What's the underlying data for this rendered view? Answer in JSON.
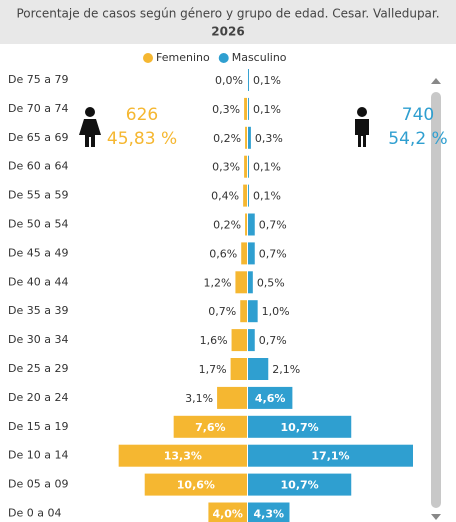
{
  "chart_data": {
    "type": "pyramid",
    "title": "Porcentaje de casos según género y grupo de edad. Cesar. Valledupar.",
    "subtitle": "2026",
    "categories": [
      "De 75 a 79",
      "De 70 a 74",
      "De 65 a 69",
      "De 60 a 64",
      "De 55 a 59",
      "De 50 a 54",
      "De 45 a 49",
      "De 40 a 44",
      "De 35 a 39",
      "De 30 a 34",
      "De 25 a 29",
      "De 20 a 24",
      "De 15 a 19",
      "De 10 a 14",
      "De 05 a 09",
      "De 0 a 04"
    ],
    "series": [
      {
        "name": "Femenino",
        "color": "#f5b731",
        "values": [
          0.0,
          0.3,
          0.2,
          0.3,
          0.4,
          0.2,
          0.6,
          1.2,
          0.7,
          1.6,
          1.7,
          3.1,
          7.6,
          13.3,
          10.6,
          4.0
        ],
        "value_labels": [
          "0,0%",
          "0,3%",
          "0,2%",
          "0,3%",
          "0,4%",
          "0,2%",
          "0,6%",
          "1,2%",
          "0,7%",
          "1,6%",
          "1,7%",
          "3,1%",
          "7,6%",
          "13,3%",
          "10,6%",
          "4,0%"
        ]
      },
      {
        "name": "Masculino",
        "color": "#2f9fd0",
        "values": [
          0.1,
          0.1,
          0.3,
          0.1,
          0.1,
          0.7,
          0.7,
          0.5,
          1.0,
          0.7,
          2.1,
          4.6,
          10.7,
          17.1,
          10.7,
          4.3
        ],
        "value_labels": [
          "0,1%",
          "0,1%",
          "0,3%",
          "0,1%",
          "0,1%",
          "0,7%",
          "0,7%",
          "0,5%",
          "1,0%",
          "0,7%",
          "2,1%",
          "4,6%",
          "10,7%",
          "17,1%",
          "10,7%",
          "4,3%"
        ]
      }
    ],
    "annotations": [
      {
        "count": 626,
        "percent": {
          "value": 45.83,
          "label": "45,83 %"
        }
      },
      {
        "count": 740,
        "percent": {
          "value": 54.2,
          "label": "54,2 %"
        }
      }
    ]
  }
}
